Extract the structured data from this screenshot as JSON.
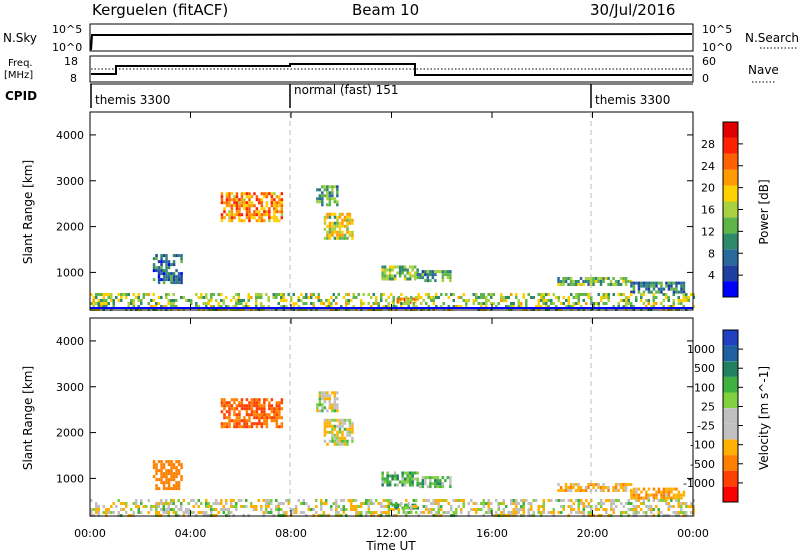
{
  "header": {
    "title": "Kerguelen (fitACF)",
    "beam": "Beam 10",
    "date": "30/Jul/2016"
  },
  "panels": {
    "nsky": {
      "left_label": "N.Sky",
      "tick_top": "10^5",
      "tick_bottom": "10^0",
      "right_label": "N.Search",
      "right_tick_top": "10^5",
      "right_tick_bottom": "10^0"
    },
    "freq": {
      "left_label_top": "Freq.",
      "left_label_bottom": "[MHz]",
      "tick_top": "18",
      "tick_bottom": "8",
      "right_label": "Nave",
      "right_tick_top": "60",
      "right_tick_bottom": "0"
    },
    "cpid": {
      "label": "CPID",
      "segments": [
        {
          "label": "themis 3300",
          "start_h": 0
        },
        {
          "label": "normal (fast) 151",
          "start_h": 8
        },
        {
          "label": "themis 3300",
          "start_h": 20
        }
      ]
    }
  },
  "colors": {
    "power_scale": [
      "#0000ff",
      "#1f3fa0",
      "#2a6a9a",
      "#2f8a6a",
      "#5fb54a",
      "#a8d040",
      "#ffd000",
      "#ff9a00",
      "#ff6000",
      "#ff2000",
      "#e00000"
    ],
    "velocity_scale": [
      "#2040c0",
      "#2060a0",
      "#208060",
      "#40b040",
      "#80d040",
      "#c0c0c0",
      "#c0c0c0",
      "#ffb000",
      "#ff8000",
      "#ff4000",
      "#ff0000"
    ],
    "grey": "#bfbfbf"
  },
  "chart_data": [
    {
      "type": "heatmap",
      "name": "power",
      "ylabel": "Slant Range [km]",
      "ylim": [
        180,
        4500
      ],
      "yticks": [
        1000,
        2000,
        3000,
        4000
      ],
      "xlim": [
        0,
        24
      ],
      "colorbar": {
        "label": "Power [dB]",
        "ticks": [
          "4",
          "8",
          "12",
          "16",
          "20",
          "24",
          "28"
        ],
        "range": [
          0,
          30
        ]
      },
      "regions": [
        {
          "t": [
            5.2,
            7.6
          ],
          "r": [
            2100,
            2750
          ],
          "v": 22
        },
        {
          "t": [
            9.3,
            10.4
          ],
          "r": [
            1750,
            2300
          ],
          "v": 16
        },
        {
          "t": [
            9.0,
            9.8
          ],
          "r": [
            2500,
            2900
          ],
          "v": 10
        },
        {
          "t": [
            11.6,
            13.0
          ],
          "r": [
            850,
            1150
          ],
          "v": 14
        },
        {
          "t": [
            13.0,
            14.3
          ],
          "r": [
            850,
            1050
          ],
          "v": 10
        },
        {
          "t": [
            12.0,
            13.0
          ],
          "r": [
            350,
            450
          ],
          "v": 24
        },
        {
          "t": [
            18.6,
            21.5
          ],
          "r": [
            750,
            900
          ],
          "v": 12
        },
        {
          "t": [
            21.5,
            23.6
          ],
          "r": [
            600,
            800
          ],
          "v": 8
        },
        {
          "t": [
            2.5,
            3.6
          ],
          "r": [
            800,
            1400
          ],
          "v": 6
        },
        {
          "t": [
            0.0,
            24.0
          ],
          "r": [
            200,
            550
          ],
          "v": 14
        }
      ]
    },
    {
      "type": "heatmap",
      "name": "velocity",
      "ylabel": "Slant Range [km]",
      "xlabel": "Time UT",
      "ylim": [
        180,
        4500
      ],
      "yticks": [
        1000,
        2000,
        3000,
        4000
      ],
      "xlim": [
        0,
        24
      ],
      "xticks": [
        "00:00",
        "04:00",
        "08:00",
        "12:00",
        "16:00",
        "20:00",
        "00:00"
      ],
      "colorbar": {
        "label": "Velocity [m s^-1]",
        "ticks": [
          "1000",
          "500",
          "100",
          "25",
          "-25",
          "-100",
          "-500",
          "-1000"
        ]
      },
      "regions": [
        {
          "t": [
            5.2,
            7.6
          ],
          "r": [
            2100,
            2750
          ],
          "v": -300
        },
        {
          "t": [
            9.3,
            10.4
          ],
          "r": [
            1750,
            2300
          ],
          "v": 0
        },
        {
          "t": [
            9.0,
            9.8
          ],
          "r": [
            2500,
            2900
          ],
          "v": 0
        },
        {
          "t": [
            11.6,
            13.0
          ],
          "r": [
            850,
            1150
          ],
          "v": 80
        },
        {
          "t": [
            13.0,
            14.3
          ],
          "r": [
            850,
            1050
          ],
          "v": 60
        },
        {
          "t": [
            12.0,
            13.0
          ],
          "r": [
            350,
            450
          ],
          "v": 80
        },
        {
          "t": [
            18.6,
            21.5
          ],
          "r": [
            750,
            900
          ],
          "v": -60
        },
        {
          "t": [
            21.5,
            23.6
          ],
          "r": [
            600,
            800
          ],
          "v": -80
        },
        {
          "t": [
            2.5,
            3.6
          ],
          "r": [
            800,
            1400
          ],
          "v": -200
        },
        {
          "t": [
            0.0,
            24.0
          ],
          "r": [
            200,
            550
          ],
          "v": 0
        }
      ]
    }
  ]
}
